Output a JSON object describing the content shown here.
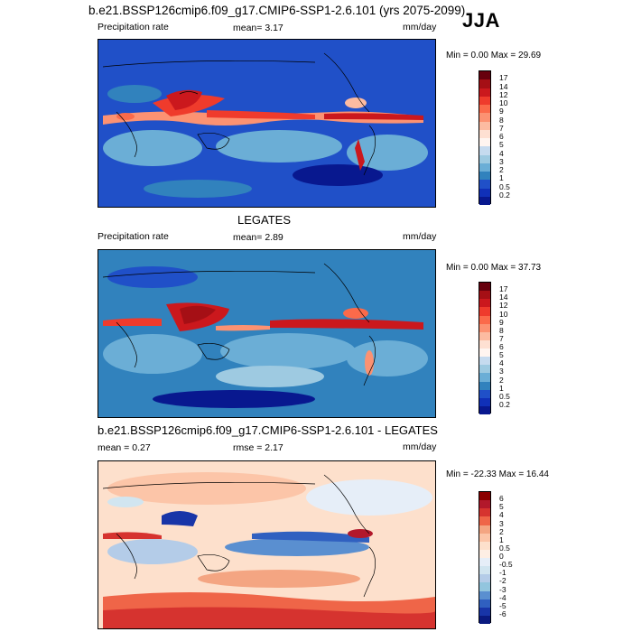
{
  "header": {
    "title": "b.e21.BSSP126cmip6.f09_g17.CMIP6-SSP1-2.6.101 (yrs 2075-2099)",
    "season": "JJA"
  },
  "panels": [
    {
      "id": "model",
      "section_title": "",
      "left_label": "Precipitation rate",
      "center_label": "mean=  3.17",
      "right_label": "mm/day",
      "minmax": "Min =   0.00 Max =  29.69"
    },
    {
      "id": "obs",
      "section_title": "LEGATES",
      "left_label": "Precipitation rate",
      "center_label": "mean=  2.89",
      "right_label": "mm/day",
      "minmax": "Min =   0.00 Max =  37.73"
    },
    {
      "id": "diff",
      "section_title": "b.e21.BSSP126cmip6.f09_g17.CMIP6-SSP1-2.6.101 - LEGATES",
      "left_label": "mean =   0.27",
      "center_label": "rmse =   2.17",
      "right_label": "mm/day",
      "minmax": "Min = -22.33 Max =  16.44"
    }
  ],
  "colorbars": {
    "precip": {
      "ticks": [
        "17",
        "14",
        "12",
        "10",
        "9",
        "8",
        "7",
        "6",
        "5",
        "4",
        "3",
        "2",
        "1",
        "0.5",
        "0.2"
      ],
      "colors": [
        "#67000d",
        "#a50f15",
        "#cb181d",
        "#ef3b2c",
        "#fb6a4a",
        "#fc9272",
        "#fcbba1",
        "#fee0d2",
        "#fff5f0",
        "#c6dbef",
        "#9ecae1",
        "#6baed6",
        "#3182bd",
        "#2050c8",
        "#1030b8",
        "#08188f"
      ]
    },
    "diff": {
      "ticks": [
        "6",
        "5",
        "4",
        "3",
        "2",
        "1",
        "0.5",
        "0",
        "-0.5",
        "-1",
        "-2",
        "-3",
        "-4",
        "-5",
        "-6"
      ],
      "colors": [
        "#8b0000",
        "#b2182b",
        "#d6332f",
        "#ef6548",
        "#f4a582",
        "#fcc5a8",
        "#fde0cc",
        "#fdeee4",
        "#e6eef8",
        "#d1e5f0",
        "#b4cce8",
        "#92c5de",
        "#5a8fd0",
        "#3060c0",
        "#1835a8",
        "#0a1a80"
      ]
    }
  },
  "chart_data": [
    {
      "type": "heatmap",
      "title": "b.e21.BSSP126cmip6.f09_g17.CMIP6-SSP1-2.6.101 (yrs 2075-2099)",
      "subtitle": "JJA",
      "variable": "Precipitation rate",
      "units": "mm/day",
      "mean": 3.17,
      "min": 0.0,
      "max": 29.69,
      "colorbar_levels": [
        0.2,
        0.5,
        1,
        2,
        3,
        4,
        5,
        6,
        7,
        8,
        9,
        10,
        12,
        14,
        17
      ]
    },
    {
      "type": "heatmap",
      "title": "LEGATES",
      "variable": "Precipitation rate",
      "units": "mm/day",
      "mean": 2.89,
      "min": 0.0,
      "max": 37.73,
      "colorbar_levels": [
        0.2,
        0.5,
        1,
        2,
        3,
        4,
        5,
        6,
        7,
        8,
        9,
        10,
        12,
        14,
        17
      ]
    },
    {
      "type": "heatmap",
      "title": "b.e21.BSSP126cmip6.f09_g17.CMIP6-SSP1-2.6.101 - LEGATES",
      "units": "mm/day",
      "mean": 0.27,
      "rmse": 2.17,
      "min": -22.33,
      "max": 16.44,
      "colorbar_levels": [
        -6,
        -5,
        -4,
        -3,
        -2,
        -1,
        -0.5,
        0,
        0.5,
        1,
        2,
        3,
        4,
        5,
        6
      ]
    }
  ]
}
